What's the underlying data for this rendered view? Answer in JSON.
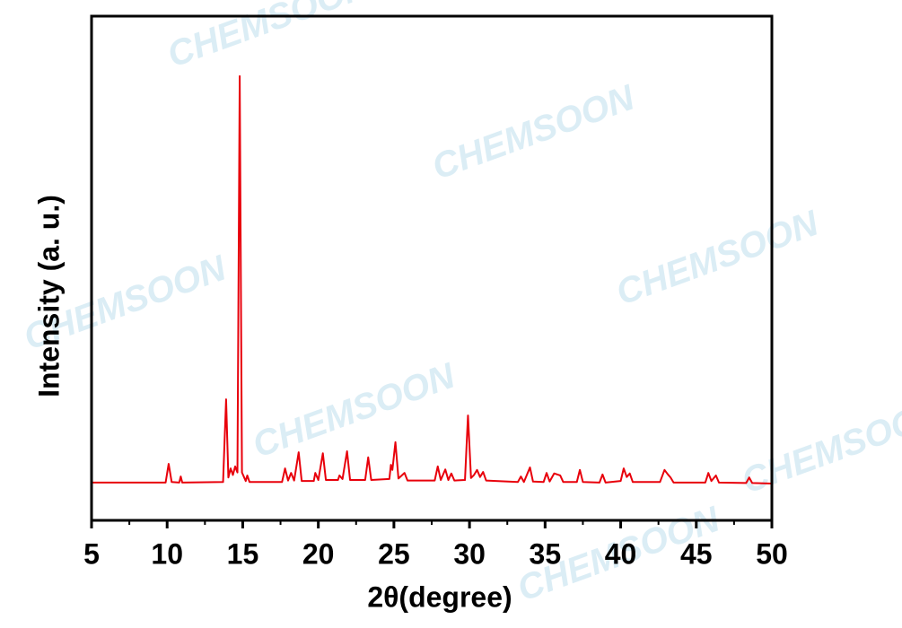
{
  "chart_data": {
    "type": "line",
    "x_label": "2θ(degree)",
    "y_label": "Intensity (a. u.)",
    "watermark": "CHEMSOON",
    "xlim": [
      5,
      50
    ],
    "ylim": [
      0,
      100
    ],
    "xticks": [
      5,
      10,
      15,
      20,
      25,
      30,
      35,
      40,
      45,
      50
    ],
    "xminorticks": [
      7.5,
      12.5,
      17.5,
      22.5,
      27.5,
      32.5,
      37.5,
      42.5,
      47.5
    ],
    "series": [
      {
        "color": "#e8000b",
        "x": [
          5,
          9.9,
          10.1,
          10.3,
          10.8,
          10.9,
          11.0,
          13.7,
          13.9,
          14.05,
          14.2,
          14.35,
          14.5,
          14.65,
          14.8,
          14.95,
          15.2,
          15.3,
          15.45,
          17.6,
          17.8,
          18.0,
          18.2,
          18.4,
          18.7,
          18.9,
          19.7,
          19.8,
          20.0,
          20.3,
          20.5,
          21.3,
          21.4,
          21.6,
          21.9,
          22.1,
          23.1,
          23.3,
          23.5,
          24.7,
          24.8,
          24.9,
          25.1,
          25.3,
          25.7,
          25.9,
          27.7,
          27.9,
          28.1,
          28.4,
          28.6,
          28.8,
          29.0,
          29.7,
          29.9,
          30.1,
          30.3,
          30.5,
          30.7,
          30.9,
          31.1,
          33.2,
          33.4,
          33.6,
          34.0,
          34.2,
          34.9,
          35.1,
          35.3,
          35.6,
          36.0,
          36.2,
          37.1,
          37.3,
          37.5,
          38.6,
          38.8,
          39.0,
          40.0,
          40.2,
          40.4,
          40.6,
          40.8,
          42.6,
          42.9,
          43.1,
          43.3,
          43.5,
          45.6,
          45.8,
          46.0,
          46.3,
          46.5,
          48.3,
          48.5,
          48.7,
          50
        ],
        "values": [
          7.5,
          7.5,
          11.2,
          7.6,
          7.5,
          8.7,
          7.5,
          7.6,
          24.0,
          8.5,
          10.3,
          9.0,
          10.7,
          9.5,
          88.1,
          9.5,
          7.8,
          8.9,
          7.6,
          7.6,
          10.3,
          7.9,
          9.4,
          7.9,
          13.5,
          7.8,
          7.8,
          9.4,
          8.0,
          13.3,
          8.0,
          8.0,
          8.9,
          8.2,
          13.7,
          8.0,
          8.0,
          12.5,
          8.0,
          8.2,
          11.0,
          10.0,
          15.5,
          8.3,
          9.4,
          7.9,
          7.9,
          10.7,
          8.0,
          10.1,
          8.0,
          9.3,
          7.9,
          8.0,
          20.8,
          8.4,
          9.0,
          10.0,
          8.6,
          9.6,
          7.9,
          7.6,
          8.7,
          7.6,
          10.5,
          7.7,
          7.6,
          9.4,
          7.7,
          9.3,
          8.9,
          7.6,
          7.6,
          10.0,
          7.6,
          7.5,
          9.1,
          7.5,
          7.8,
          10.3,
          8.6,
          9.3,
          7.6,
          7.6,
          10.0,
          9.2,
          8.5,
          7.5,
          7.5,
          9.4,
          7.8,
          8.9,
          7.5,
          7.4,
          8.5,
          7.4,
          7.3
        ]
      }
    ]
  }
}
